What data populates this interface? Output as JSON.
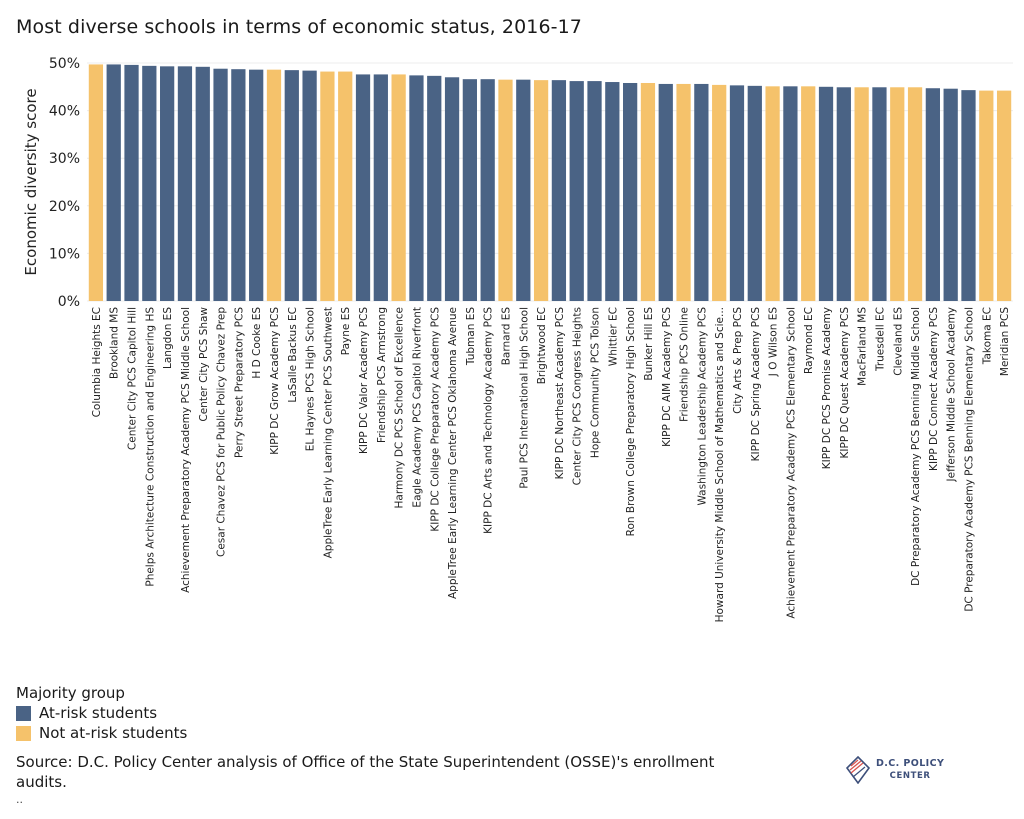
{
  "title": "Most diverse schools in terms of economic status, 2016-17",
  "legend": {
    "title": "Majority group",
    "items": [
      {
        "label": "At-risk students",
        "color": "#4a6385"
      },
      {
        "label": "Not at-risk students",
        "color": "#f5c26b"
      }
    ]
  },
  "source": "Source: D.C. Policy Center analysis of Office of the State Superintendent (OSSE)'s enrollment audits.",
  "footnote": "..",
  "logo": {
    "line1": "D.C. POLICY",
    "line2": "CENTER"
  },
  "chart_data": {
    "type": "bar",
    "ylabel": "Economic diversity score",
    "ylim": [
      0,
      50
    ],
    "yticks": [
      0,
      10,
      20,
      30,
      40,
      50
    ],
    "ytick_labels": [
      "0%",
      "10%",
      "20%",
      "30%",
      "40%",
      "50%"
    ],
    "grid": true,
    "legend_position": "bottom-left",
    "colors": {
      "at_risk": "#4a6385",
      "not_at_risk": "#f5c26b"
    },
    "categories": [
      "Columbia Heights EC",
      "Brookland MS",
      "Center City PCS Capitol Hill",
      "Phelps Architecture Construction and Engineering HS",
      "Langdon ES",
      "Achievement Preparatory Academy PCS Middle School",
      "Center City PCS Shaw",
      "Cesar Chavez PCS for Public Policy Chavez Prep",
      "Perry Street Preparatory PCS",
      "H D Cooke ES",
      "KIPP DC Grow Academy PCS",
      "LaSalle Backus EC",
      "EL Haynes PCS High School",
      "AppleTree Early Learning Center PCS Southwest",
      "Payne ES",
      "KIPP DC Valor Academy PCS",
      "Friendship PCS Armstrong",
      "Harmony DC PCS School of Excellence",
      "Eagle Academy PCS Capitol Riverfront",
      "KIPP DC College Preparatory Academy PCS",
      "AppleTree Early Learning Center PCS Oklahoma Avenue",
      "Tubman ES",
      "KIPP DC Arts and Technology Academy PCS",
      "Barnard ES",
      "Paul PCS International High School",
      "Brightwood EC",
      "KIPP DC Northeast Academy PCS",
      "Center City PCS Congress Heights",
      "Hope Community PCS Tolson",
      "Whittier EC",
      "Ron Brown College Preparatory High School",
      "Bunker Hill ES",
      "KIPP DC AIM Academy PCS",
      "Friendship PCS Online",
      "Washington Leadership Academy PCS",
      "Howard University Middle School of Mathematics and Scie...",
      "City Arts & Prep PCS",
      "KIPP DC Spring Academy PCS",
      "J O Wilson ES",
      "Achievement Preparatory Academy PCS Elementary School",
      "Raymond EC",
      "KIPP DC PCS Promise Academy",
      "KIPP DC Quest Academy PCS",
      "MacFarland MS",
      "Truesdell EC",
      "Cleveland ES",
      "DC Preparatory Academy PCS Benning Middle School",
      "KIPP DC Connect Academy PCS",
      "Jefferson Middle School Academy",
      "DC Preparatory Academy PCS Benning Elementary School",
      "Takoma EC",
      "Meridian PCS"
    ],
    "values": [
      49.7,
      49.7,
      49.6,
      49.4,
      49.3,
      49.3,
      49.2,
      48.8,
      48.7,
      48.6,
      48.6,
      48.5,
      48.4,
      48.2,
      48.2,
      47.6,
      47.6,
      47.6,
      47.4,
      47.3,
      47.0,
      46.6,
      46.6,
      46.5,
      46.5,
      46.4,
      46.4,
      46.2,
      46.2,
      46.0,
      45.8,
      45.8,
      45.6,
      45.6,
      45.6,
      45.4,
      45.3,
      45.2,
      45.1,
      45.1,
      45.1,
      45.0,
      44.9,
      44.9,
      44.9,
      44.9,
      44.9,
      44.7,
      44.6,
      44.3,
      44.2,
      44.2
    ],
    "groups": [
      "not_at_risk",
      "at_risk",
      "at_risk",
      "at_risk",
      "at_risk",
      "at_risk",
      "at_risk",
      "at_risk",
      "at_risk",
      "at_risk",
      "not_at_risk",
      "at_risk",
      "at_risk",
      "not_at_risk",
      "not_at_risk",
      "at_risk",
      "at_risk",
      "not_at_risk",
      "at_risk",
      "at_risk",
      "at_risk",
      "at_risk",
      "at_risk",
      "not_at_risk",
      "at_risk",
      "not_at_risk",
      "at_risk",
      "at_risk",
      "at_risk",
      "at_risk",
      "at_risk",
      "not_at_risk",
      "at_risk",
      "not_at_risk",
      "at_risk",
      "not_at_risk",
      "at_risk",
      "at_risk",
      "not_at_risk",
      "at_risk",
      "not_at_risk",
      "at_risk",
      "at_risk",
      "not_at_risk",
      "at_risk",
      "not_at_risk",
      "not_at_risk",
      "at_risk",
      "at_risk",
      "at_risk",
      "not_at_risk",
      "not_at_risk"
    ]
  }
}
